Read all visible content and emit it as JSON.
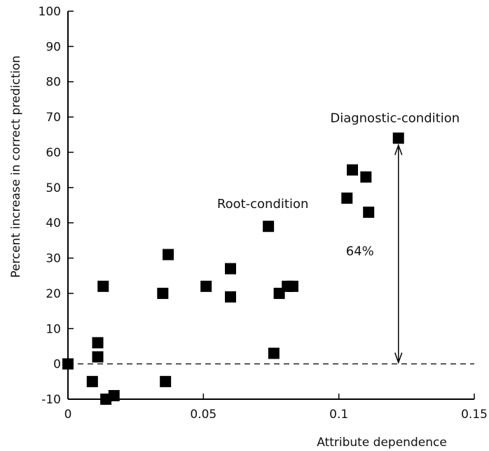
{
  "chart_data": {
    "type": "scatter",
    "title": "",
    "xlabel": "Attribute dependence",
    "ylabel": "Percent increase in correct prediction",
    "xlim": [
      0,
      0.15
    ],
    "ylim": [
      -10,
      100
    ],
    "x_ticks": [
      0,
      0.05,
      0.1,
      0.15
    ],
    "x_tick_labels": [
      "0",
      "0.05",
      "0.1",
      "0.15"
    ],
    "y_ticks": [
      -10,
      0,
      10,
      20,
      30,
      40,
      50,
      60,
      70,
      80,
      90,
      100
    ],
    "y_tick_labels": [
      "-10",
      "0",
      "10",
      "20",
      "30",
      "40",
      "50",
      "60",
      "70",
      "80",
      "90",
      "100"
    ],
    "grid": false,
    "marker": "square",
    "marker_color": "#000000",
    "reference_line": {
      "y": 0,
      "style": "dashed"
    },
    "series": [
      {
        "x": [
          0,
          0.009,
          0.011,
          0.011,
          0.013,
          0.014,
          0.017,
          0.035,
          0.036,
          0.037,
          0.051,
          0.06,
          0.06,
          0.074,
          0.076,
          0.078,
          0.081,
          0.083,
          0.103,
          0.105,
          0.11,
          0.111,
          0.122
        ],
        "y": [
          0,
          -5,
          6,
          2,
          22,
          -10,
          -9,
          20,
          -5,
          31,
          22,
          27,
          19,
          39,
          3,
          20,
          22,
          22,
          47,
          55,
          53,
          43,
          64
        ]
      }
    ],
    "annotations": [
      {
        "text": "Diagnostic-condition",
        "x": 0.122,
        "y": 64
      },
      {
        "text": "Root-condition",
        "x": 0.074,
        "y": 39
      },
      {
        "text": "64%",
        "x": 0.122,
        "y": 32,
        "arrow_from": 0,
        "arrow_to": 64
      }
    ]
  }
}
